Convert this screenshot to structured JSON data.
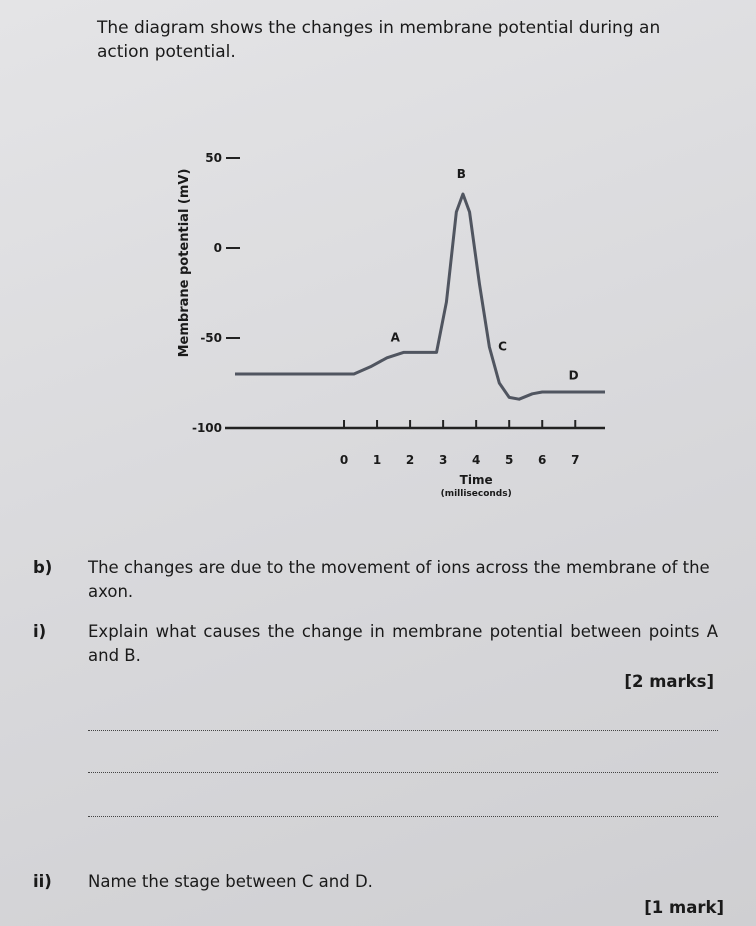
{
  "intro": "The diagram shows the changes in membrane potential during an action potential.",
  "chart_data": {
    "type": "line",
    "y_label": "Membrane potential (mV)",
    "x_label": "Time",
    "x_sublabel": "(milliseconds)",
    "xlim": [
      -3.3,
      7.9
    ],
    "ylim": [
      -100,
      50
    ],
    "xticks": [
      0,
      1,
      2,
      3,
      4,
      5,
      6,
      7
    ],
    "yticks": [
      50,
      0,
      -50,
      -100
    ],
    "color": "#505560",
    "x": [
      -3.3,
      -2,
      -1,
      0,
      0.3,
      0.8,
      1.3,
      1.8,
      2.3,
      2.8,
      3.1,
      3.4,
      3.6,
      3.8,
      4.1,
      4.4,
      4.7,
      5.0,
      5.3,
      5.7,
      6.0,
      6.5,
      7.9
    ],
    "values": [
      -70,
      -70,
      -70,
      -70,
      -70,
      -66,
      -61,
      -58,
      -58,
      -58,
      -30,
      20,
      30,
      20,
      -20,
      -55,
      -75,
      -83,
      -84,
      -81,
      -80,
      -80,
      -80
    ],
    "annotations": [
      {
        "text": "A",
        "x": 1.55,
        "y": -52
      },
      {
        "text": "B",
        "x": 3.55,
        "y": 39
      },
      {
        "text": "C",
        "x": 4.8,
        "y": -57
      },
      {
        "text": "D",
        "x": 6.95,
        "y": -73
      }
    ]
  },
  "question_b": {
    "label": "b)",
    "text": "The changes are due to the movement of ions across the membrane of the axon."
  },
  "question_i": {
    "label": "i)",
    "text": "Explain what causes the change in membrane potential between points A and B.",
    "marks": "[2 marks]"
  },
  "question_ii": {
    "label": "ii)",
    "text": "Name the stage between C and D.",
    "marks": "[1 mark]"
  }
}
